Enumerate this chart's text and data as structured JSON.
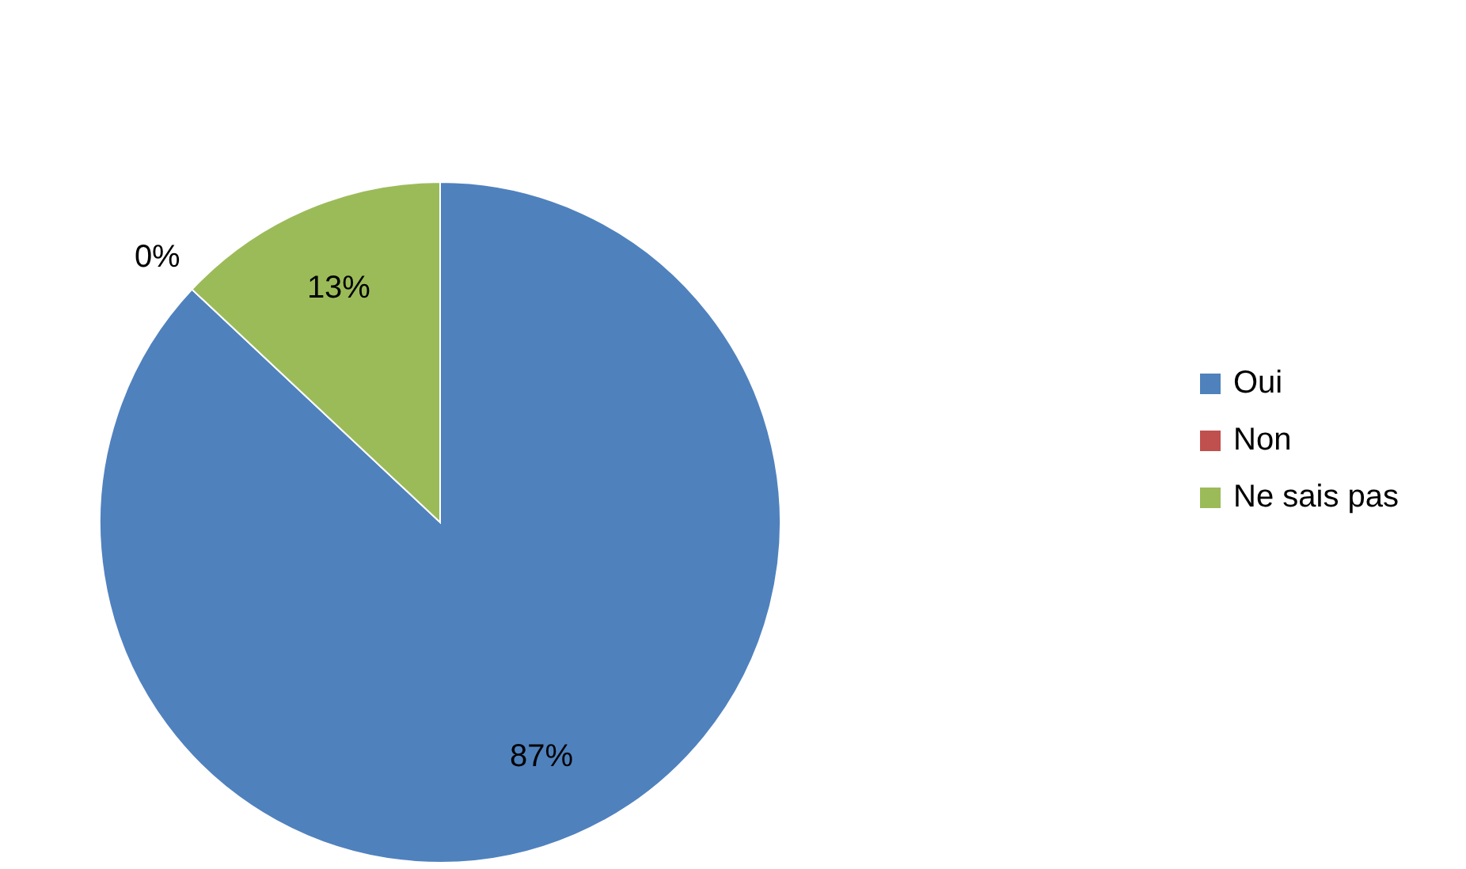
{
  "chart_data": {
    "type": "pie",
    "categories": [
      "Oui",
      "Non",
      "Ne sais pas"
    ],
    "values": [
      87,
      0,
      13
    ],
    "colors": [
      "#4f81bd",
      "#c0504d",
      "#9bbb59"
    ],
    "value_labels": [
      "87%",
      "0%",
      "13%"
    ],
    "legend": "right"
  }
}
